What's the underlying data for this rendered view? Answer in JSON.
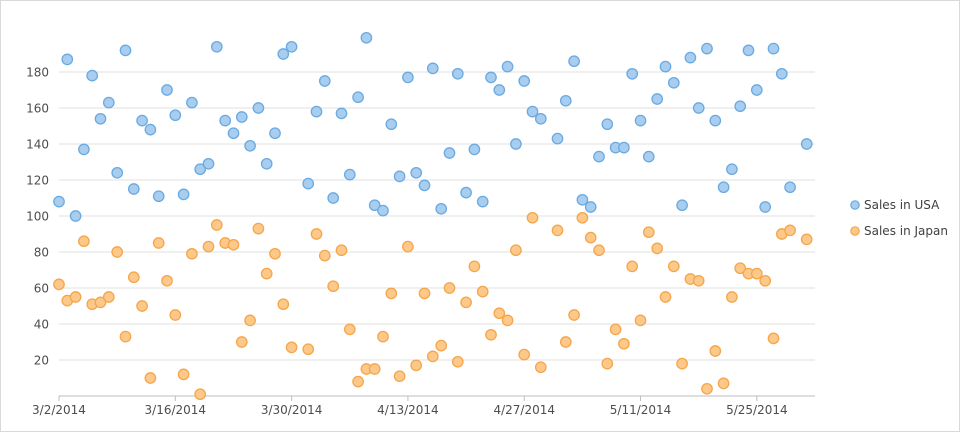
{
  "chart_data": {
    "type": "scatter",
    "title": "",
    "xlabel": "",
    "ylabel": "",
    "x_axis": {
      "start_date": "2014-03-02",
      "end_date": "2014-06-01",
      "tick_labels": [
        "3/2/2014",
        "3/16/2014",
        "3/30/2014",
        "4/13/2014",
        "4/27/2014",
        "5/11/2014",
        "5/25/2014"
      ],
      "tick_dates": [
        "2014-03-02",
        "2014-03-16",
        "2014-03-30",
        "2014-04-13",
        "2014-04-27",
        "2014-05-11",
        "2014-05-25"
      ]
    },
    "y_axis": {
      "min": 0,
      "max": 200,
      "tick_labels": [
        "20",
        "40",
        "60",
        "80",
        "100",
        "120",
        "140",
        "160",
        "180"
      ],
      "tick_values": [
        20,
        40,
        60,
        80,
        100,
        120,
        140,
        160,
        180
      ]
    },
    "grid": "horizontal",
    "legend_position": "right",
    "colors": {
      "usa_fill": "#a8cdee",
      "usa_stroke": "#6aaae2",
      "japan_fill": "#fcc98a",
      "japan_stroke": "#f6a54a",
      "grid": "#e1e1e1",
      "axis": "#bdbdbd"
    },
    "series": [
      {
        "name": "Sales in USA",
        "x": [
          "2014-03-02",
          "2014-03-03",
          "2014-03-04",
          "2014-03-05",
          "2014-03-06",
          "2014-03-07",
          "2014-03-08",
          "2014-03-09",
          "2014-03-10",
          "2014-03-11",
          "2014-03-12",
          "2014-03-13",
          "2014-03-14",
          "2014-03-15",
          "2014-03-16",
          "2014-03-17",
          "2014-03-18",
          "2014-03-19",
          "2014-03-20",
          "2014-03-21",
          "2014-03-22",
          "2014-03-23",
          "2014-03-24",
          "2014-03-25",
          "2014-03-26",
          "2014-03-27",
          "2014-03-28",
          "2014-03-29",
          "2014-03-30",
          "2014-03-31",
          "2014-04-01",
          "2014-04-02",
          "2014-04-03",
          "2014-04-04",
          "2014-04-05",
          "2014-04-06",
          "2014-04-07",
          "2014-04-08",
          "2014-04-09",
          "2014-04-10",
          "2014-04-11",
          "2014-04-12",
          "2014-04-13",
          "2014-04-14",
          "2014-04-15",
          "2014-04-16",
          "2014-04-17",
          "2014-04-18",
          "2014-04-19",
          "2014-04-20",
          "2014-04-21",
          "2014-04-22",
          "2014-04-23",
          "2014-04-24",
          "2014-04-25",
          "2014-04-26",
          "2014-04-27",
          "2014-04-28",
          "2014-04-29",
          "2014-04-30",
          "2014-05-01",
          "2014-05-02",
          "2014-05-03",
          "2014-05-04",
          "2014-05-05",
          "2014-05-06",
          "2014-05-07",
          "2014-05-08",
          "2014-05-09",
          "2014-05-10",
          "2014-05-11",
          "2014-05-12",
          "2014-05-13",
          "2014-05-14",
          "2014-05-15",
          "2014-05-16",
          "2014-05-17",
          "2014-05-18",
          "2014-05-19",
          "2014-05-20",
          "2014-05-21",
          "2014-05-22",
          "2014-05-23",
          "2014-05-24",
          "2014-05-25",
          "2014-05-26",
          "2014-05-27",
          "2014-05-28",
          "2014-05-29",
          "2014-05-30",
          "2014-05-31",
          "2014-06-01"
        ],
        "values": [
          108,
          187,
          100,
          137,
          178,
          154,
          163,
          124,
          192,
          115,
          153,
          148,
          111,
          170,
          156,
          112,
          163,
          126,
          129,
          194,
          153,
          146,
          155,
          139,
          160,
          129,
          146,
          190,
          194,
          null,
          118,
          158,
          175,
          110,
          157,
          123,
          166,
          199,
          106,
          103,
          151,
          122,
          177,
          124,
          117,
          182,
          104,
          135,
          179,
          113,
          137,
          108,
          177,
          170,
          183,
          140,
          175,
          158,
          154,
          null,
          143,
          164,
          186,
          109,
          105,
          133,
          151,
          138,
          138,
          179,
          153,
          133,
          165,
          183,
          174,
          106,
          188,
          160,
          193,
          153,
          116,
          126,
          161,
          192,
          170,
          105,
          193,
          179,
          116,
          null,
          140,
          null
        ]
      },
      {
        "name": "Sales in Japan",
        "x": [
          "2014-03-02",
          "2014-03-03",
          "2014-03-04",
          "2014-03-05",
          "2014-03-06",
          "2014-03-07",
          "2014-03-08",
          "2014-03-09",
          "2014-03-10",
          "2014-03-11",
          "2014-03-12",
          "2014-03-13",
          "2014-03-14",
          "2014-03-15",
          "2014-03-16",
          "2014-03-17",
          "2014-03-18",
          "2014-03-19",
          "2014-03-20",
          "2014-03-21",
          "2014-03-22",
          "2014-03-23",
          "2014-03-24",
          "2014-03-25",
          "2014-03-26",
          "2014-03-27",
          "2014-03-28",
          "2014-03-29",
          "2014-03-30",
          "2014-03-31",
          "2014-04-01",
          "2014-04-02",
          "2014-04-03",
          "2014-04-04",
          "2014-04-05",
          "2014-04-06",
          "2014-04-07",
          "2014-04-08",
          "2014-04-09",
          "2014-04-10",
          "2014-04-11",
          "2014-04-12",
          "2014-04-13",
          "2014-04-14",
          "2014-04-15",
          "2014-04-16",
          "2014-04-17",
          "2014-04-18",
          "2014-04-19",
          "2014-04-20",
          "2014-04-21",
          "2014-04-22",
          "2014-04-23",
          "2014-04-24",
          "2014-04-25",
          "2014-04-26",
          "2014-04-27",
          "2014-04-28",
          "2014-04-29",
          "2014-04-30",
          "2014-05-01",
          "2014-05-02",
          "2014-05-03",
          "2014-05-04",
          "2014-05-05",
          "2014-05-06",
          "2014-05-07",
          "2014-05-08",
          "2014-05-09",
          "2014-05-10",
          "2014-05-11",
          "2014-05-12",
          "2014-05-13",
          "2014-05-14",
          "2014-05-15",
          "2014-05-16",
          "2014-05-17",
          "2014-05-18",
          "2014-05-19",
          "2014-05-20",
          "2014-05-21",
          "2014-05-22",
          "2014-05-23",
          "2014-05-24",
          "2014-05-25",
          "2014-05-26",
          "2014-05-27",
          "2014-05-28",
          "2014-05-29",
          "2014-05-30",
          "2014-05-31",
          "2014-06-01"
        ],
        "values": [
          62,
          53,
          55,
          86,
          51,
          52,
          55,
          80,
          33,
          66,
          50,
          10,
          85,
          64,
          45,
          12,
          79,
          1,
          83,
          95,
          85,
          84,
          30,
          42,
          93,
          68,
          79,
          51,
          27,
          null,
          26,
          90,
          78,
          61,
          81,
          37,
          8,
          15,
          15,
          33,
          57,
          11,
          83,
          17,
          57,
          22,
          28,
          60,
          19,
          52,
          72,
          58,
          34,
          46,
          42,
          81,
          23,
          99,
          16,
          null,
          92,
          30,
          45,
          99,
          88,
          81,
          18,
          37,
          29,
          72,
          42,
          91,
          82,
          55,
          72,
          18,
          65,
          64,
          4,
          25,
          7,
          55,
          71,
          68,
          68,
          64,
          32,
          90,
          92,
          null,
          87,
          null
        ]
      }
    ]
  }
}
